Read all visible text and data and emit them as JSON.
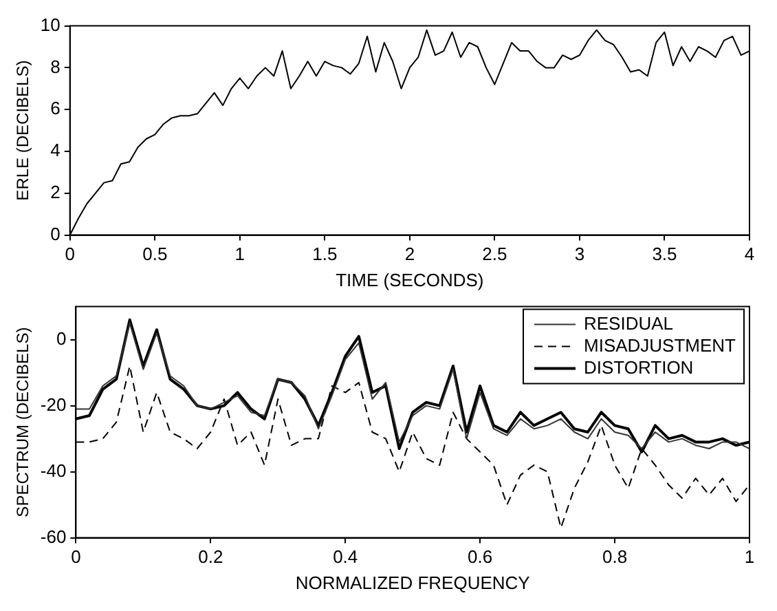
{
  "chart_data": [
    {
      "type": "line",
      "xlabel": "TIME (SECONDS)",
      "ylabel": "ERLE (DECIBELS)",
      "xlim": [
        0,
        4
      ],
      "ylim": [
        0,
        10
      ],
      "xticks": [
        0,
        0.5,
        1,
        1.5,
        2,
        2.5,
        3,
        3.5,
        4
      ],
      "yticks": [
        0,
        2,
        4,
        6,
        8,
        10
      ],
      "grid": false,
      "legend": false,
      "marker": "none",
      "x": [
        0,
        0.05,
        0.1,
        0.15,
        0.2,
        0.25,
        0.3,
        0.35,
        0.4,
        0.45,
        0.5,
        0.55,
        0.6,
        0.65,
        0.7,
        0.75,
        0.8,
        0.85,
        0.9,
        0.95,
        1,
        1.05,
        1.1,
        1.15,
        1.2,
        1.25,
        1.3,
        1.35,
        1.4,
        1.45,
        1.5,
        1.55,
        1.6,
        1.65,
        1.7,
        1.75,
        1.8,
        1.85,
        1.9,
        1.95,
        2,
        2.05,
        2.1,
        2.15,
        2.2,
        2.25,
        2.3,
        2.35,
        2.4,
        2.45,
        2.5,
        2.55,
        2.6,
        2.65,
        2.7,
        2.75,
        2.8,
        2.85,
        2.9,
        2.95,
        3,
        3.05,
        3.1,
        3.15,
        3.2,
        3.25,
        3.3,
        3.35,
        3.4,
        3.45,
        3.5,
        3.55,
        3.6,
        3.65,
        3.7,
        3.75,
        3.8,
        3.85,
        3.9,
        3.95,
        4
      ],
      "series": [
        {
          "color": "#000000",
          "line_style": "solid",
          "values": [
            0,
            0.8,
            1.5,
            2.0,
            2.5,
            2.6,
            3.4,
            3.5,
            4.2,
            4.6,
            4.8,
            5.3,
            5.6,
            5.7,
            5.7,
            5.8,
            6.3,
            6.8,
            6.2,
            7.0,
            7.5,
            7.0,
            7.6,
            8.0,
            7.6,
            8.8,
            7.0,
            7.6,
            8.3,
            7.6,
            8.3,
            8.1,
            8.0,
            7.7,
            8.2,
            9.5,
            7.8,
            9.2,
            8.3,
            7.0,
            8.0,
            8.5,
            9.8,
            8.6,
            8.8,
            9.7,
            8.5,
            9.2,
            9.0,
            8.0,
            7.2,
            8.2,
            9.2,
            8.8,
            8.8,
            8.3,
            8.0,
            8.0,
            8.6,
            8.4,
            8.6,
            9.3,
            9.8,
            9.3,
            9.1,
            8.5,
            7.8,
            7.9,
            7.6,
            9.2,
            9.7,
            8.1,
            9.0,
            8.3,
            9.0,
            8.8,
            8.5,
            9.3,
            9.5,
            8.6,
            8.8
          ]
        }
      ]
    },
    {
      "type": "line",
      "xlabel": "NORMALIZED FREQUENCY",
      "ylabel": "SPECTRUM (DECIBELS)",
      "xlim": [
        0,
        1
      ],
      "ylim": [
        -60,
        10
      ],
      "xticks": [
        0,
        0.2,
        0.4,
        0.6,
        0.8,
        1
      ],
      "yticks": [
        -60,
        -40,
        -20,
        0
      ],
      "grid": false,
      "legend": "top right",
      "marker": "none",
      "x": [
        0,
        0.02,
        0.04,
        0.06,
        0.08,
        0.1,
        0.12,
        0.14,
        0.16,
        0.18,
        0.2,
        0.22,
        0.24,
        0.26,
        0.28,
        0.3,
        0.32,
        0.34,
        0.36,
        0.38,
        0.4,
        0.42,
        0.44,
        0.46,
        0.48,
        0.5,
        0.52,
        0.54,
        0.56,
        0.58,
        0.6,
        0.62,
        0.64,
        0.66,
        0.68,
        0.7,
        0.72,
        0.74,
        0.76,
        0.78,
        0.8,
        0.82,
        0.84,
        0.86,
        0.88,
        0.9,
        0.92,
        0.94,
        0.96,
        0.98,
        1
      ],
      "series": [
        {
          "name": "RESIDUAL",
          "color": "#333333",
          "line_style": "solid",
          "values": [
            -21,
            -21,
            -14,
            -11,
            5,
            -9,
            2,
            -11,
            -14,
            -20,
            -21,
            -19,
            -17,
            -22,
            -23,
            -12,
            -13,
            -17,
            -27,
            -17,
            -6,
            -1,
            -18,
            -13,
            -31,
            -23,
            -20,
            -21,
            -9,
            -30,
            -16,
            -27,
            -29,
            -24,
            -27,
            -26,
            -24,
            -28,
            -30,
            -24,
            -28,
            -29,
            -33,
            -28,
            -31,
            -30,
            -32,
            -33,
            -31,
            -31,
            -33
          ]
        },
        {
          "name": "MISADJUSTMENT",
          "color": "#000000",
          "line_style": "dashed",
          "values": [
            -31,
            -31,
            -30,
            -25,
            -8,
            -28,
            -16,
            -28,
            -30,
            -33,
            -28,
            -18,
            -32,
            -28,
            -38,
            -18,
            -32,
            -30,
            -30,
            -14,
            -16,
            -13,
            -28,
            -30,
            -40,
            -28,
            -36,
            -38,
            -22,
            -30,
            -34,
            -38,
            -50,
            -41,
            -38,
            -40,
            -57,
            -45,
            -37,
            -26,
            -38,
            -45,
            -33,
            -38,
            -44,
            -48,
            -42,
            -47,
            -42,
            -49,
            -44
          ]
        },
        {
          "name": "DISTORTION",
          "color": "#000000",
          "line_style": "solid",
          "values": [
            -24,
            -23,
            -15,
            -12,
            6,
            -8,
            3,
            -12,
            -15,
            -20,
            -21,
            -20,
            -16,
            -21,
            -24,
            -12,
            -13,
            -18,
            -26,
            -16,
            -5,
            1,
            -16,
            -14,
            -33,
            -22,
            -19,
            -20,
            -8,
            -28,
            -14,
            -26,
            -28,
            -22,
            -26,
            -24,
            -22,
            -27,
            -28,
            -22,
            -26,
            -27,
            -34,
            -26,
            -30,
            -29,
            -31,
            -31,
            -30,
            -32,
            -31
          ]
        }
      ]
    }
  ]
}
